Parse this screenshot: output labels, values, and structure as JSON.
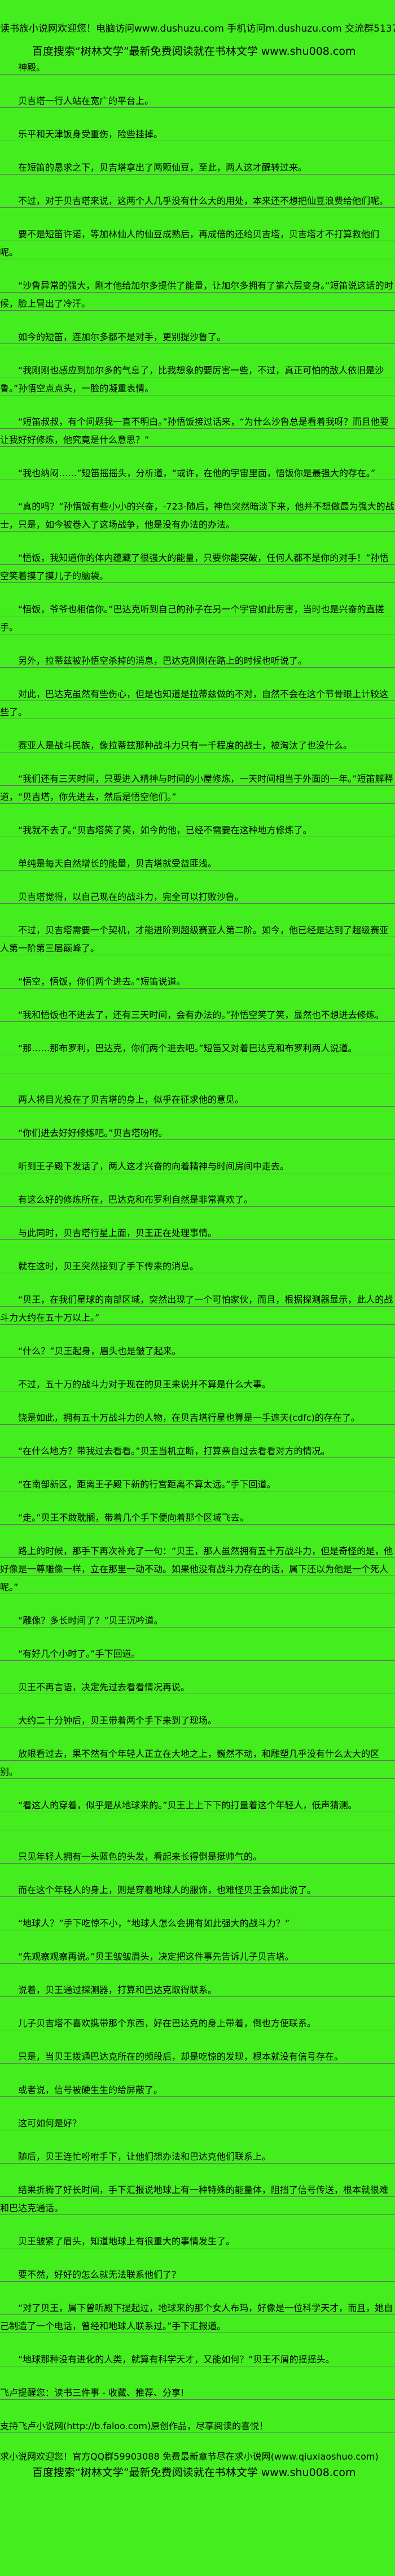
{
  "page": {
    "background_color": "#44ee1e",
    "text_color": "#000000",
    "rule_line_color": "#6c6c6c"
  },
  "header": {
    "welcome_line": "读书族小说网欢迎您！电脑访问www.dushuzu.com 手机访问m.dushuzu.com 交流群513781872",
    "promo_line": "百度搜索“树林文学”最新免费阅读就在书林文学 www.shu008.com"
  },
  "chapter": {
    "paragraphs": [
      {
        "text": "神殿。"
      },
      {
        "text": "贝吉塔一行人站在宽广的平台上。"
      },
      {
        "text": "乐平和天津饭身受重伤，险些挂掉。"
      },
      {
        "text": "在短笛的恳求之下，贝吉塔拿出了两颗仙豆，至此，两人这才醒转过来。"
      },
      {
        "text": "不过，对于贝吉塔来说，这两个人几乎没有什么大的用处，本来还不想把仙豆浪费给他们呢。"
      },
      {
        "text": "要不是短笛许诺，等加林仙人的仙豆成熟后，再成倍的还给贝吉塔，贝吉塔才不打算救他们呢。"
      },
      {
        "text": "“沙鲁异常的强大，刚才他给加尔多提供了能量，让加尔多拥有了第六层变身。”短笛说这话的时候，脸上冒出了冷汗。"
      },
      {
        "text": "如今的短笛，连加尔多都不是对手，更别提沙鲁了。"
      },
      {
        "text": "“我刚刚也感应到加尔多的气息了，比我想象的要厉害一些，不过，真正可怕的敌人依旧是沙鲁。”孙悟空点点头，一脸的凝重表情。"
      },
      {
        "text": "“短笛叔叔，有个问题我一直不明白。”孙悟饭接过话来，“为什么沙鲁总是看着我呀？而且他要让我好好修炼，他究竟是什么意思？”"
      },
      {
        "text": "“我也纳闷……”短笛摇摇头，分析道，“或许，在他的宇宙里面，悟饭你是最强大的存在。”"
      },
      {
        "text": "“真的吗？”孙悟饭有些小小的兴奋，-723-随后，神色突然暗淡下来，他并不想做最为强大的战士，只是，如今被卷入了这场战争，他是没有办法的办法。"
      },
      {
        "text": "“悟饭，我知道你的体内蕴藏了很强大的能量，只要你能突破，任何人都不是你的对手！”孙悟空笑着摸了摸儿子的脑袋。"
      },
      {
        "text": "“悟饭，爷爷也相信你。”巴达克听到自己的孙子在另一个宇宙如此厉害，当时也是兴奋的直搓手。"
      },
      {
        "text": "另外，拉蒂兹被孙悟空杀掉的消息，巴达克刚刚在路上的时候也听说了。"
      },
      {
        "text": "对此，巴达克虽然有些伤心，但是也知道是拉蒂兹做的不对，自然不会在这个节骨眼上计较这些了。"
      },
      {
        "text": "赛亚人是战斗民族，像拉蒂兹那种战斗力只有一千程度的战士，被淘汰了也没什么。"
      },
      {
        "text": "“我们还有三天时间，只要进入精神与时间的小屋修炼，一天时间相当于外面的一年。”短笛解释道，“贝吉塔，你先进去，然后是悟空他们。”"
      },
      {
        "text": "“我就不去了。”贝吉塔笑了笑，如今的他，已经不需要在这种地方修炼了。"
      },
      {
        "text": "单纯是每天自然增长的能量，贝吉塔就受益匪浅。"
      },
      {
        "text": "贝吉塔觉得，以自己现在的战斗力，完全可以打败沙鲁。"
      },
      {
        "text": "不过，贝吉塔需要一个契机，才能进阶到超级赛亚人第二阶。如今，他已经是达到了超级赛亚人第一阶第三层巅峰了。"
      },
      {
        "text": "“悟空，悟饭，你们两个进去。”短笛说道。"
      },
      {
        "text": "“我和悟饭也不进去了，还有三天时间，会有办法的。”孙悟空笑了笑，显然也不想进去修炼。"
      },
      {
        "text": "“那……那布罗利，巴达克，你们两个进去吧。”短笛又对着巴达克和布罗利两人说道。",
        "blank_tail": true
      },
      {
        "text": "两人将目光投在了贝吉塔的身上，似乎在征求他的意见。"
      },
      {
        "text": "“你们进去好好修炼吧。”贝吉塔吩咐。"
      },
      {
        "text": "听到王子殿下发话了，两人这才兴奋的向着精神与时间房间中走去。"
      },
      {
        "text": "有这么好的修炼所在，巴达克和布罗利自然是非常喜欢了。"
      },
      {
        "text": "与此同时，贝吉塔行星上面，贝王正在处理事情。"
      },
      {
        "text": "就在这时，贝王突然接到了手下传来的消息。"
      },
      {
        "text": "“贝王，在我们星球的南部区域，突然出现了一个可怕家伙，而且，根据探测器显示，此人的战斗力大约在五十万以上。”"
      },
      {
        "text": "“什么？”贝王起身，眉头也是皱了起来。"
      },
      {
        "text": "不过，五十万的战斗力对于现在的贝王来说并不算是什么大事。"
      },
      {
        "text": "饶是如此，拥有五十万战斗力的人物，在贝吉塔行星也算是一手遮天(cdfc)的存在了。"
      },
      {
        "text": "“在什么地方？带我过去看看。”贝王当机立断，打算亲自过去看看对方的情况。"
      },
      {
        "text": "“在南部新区，距离王子殿下新的行宫距离不算太远。”手下回道。"
      },
      {
        "text": "“走。”贝王不敢耽搁，带着几个手下便向着那个区域飞去。"
      },
      {
        "text": "路上的时候，那手下再次补充了一句：“贝王，那人虽然拥有五十万战斗力，但是奇怪的是，他好像是一尊雕像一样，立在那里一动不动。如果他没有战斗力存在的话，属下还以为他是一个死人呢。”"
      },
      {
        "text": "“雕像？多长时间了？”贝王沉吟道。"
      },
      {
        "text": "“有好几个小时了。”手下回道。"
      },
      {
        "text": "贝王不再言语，决定先过去看看情况再说。"
      },
      {
        "text": "大约二十分钟后，贝王带着两个手下来到了现场。"
      },
      {
        "text": "放眼看过去，果不然有个年轻人正立在大地之上，巍然不动，和雕塑几乎没有什么太大的区别。"
      },
      {
        "text": "“看这人的穿着，似乎是从地球来的。”贝王上上下下的打量着这个年轻人，低声猜测。",
        "blank_tail": true
      },
      {
        "text": "只见年轻人拥有一头蓝色的头发，看起来长得倒是挺帅气的。"
      },
      {
        "text": "而在这个年轻人的身上，则是穿着地球人的服饰，也难怪贝王会如此说了。"
      },
      {
        "text": "“地球人？”手下吃惊不小，“地球人怎么会拥有如此强大的战斗力？”"
      },
      {
        "text": "“先观察观察再说。”贝王皱皱眉头，决定把这件事先告诉儿子贝吉塔。"
      },
      {
        "text": "说着，贝王通过探测器，打算和巴达克取得联系。"
      },
      {
        "text": "儿子贝吉塔不喜欢携带那个东西，好在巴达克的身上带着，倒也方便联系。"
      },
      {
        "text": "只是，当贝王拨通巴达克所在的频段后，却是吃惊的发现，根本就没有信号存在。"
      },
      {
        "text": "或者说，信号被硬生生的给屏蔽了。"
      },
      {
        "text": "这可如何是好？"
      },
      {
        "text": "随后，贝王连忙吩咐手下，让他们想办法和巴达克他们联系上。"
      },
      {
        "text": "结果折腾了好长时间，手下汇报说地球上有一种特殊的能量体，阻挡了信号传送，根本就很难和巴达克通话。"
      },
      {
        "text": "贝王皱紧了眉头，知道地球上有很重大的事情发生了。"
      },
      {
        "text": "要不然，好好的怎么就无法联系他们了？"
      },
      {
        "text": "“对了贝王，属下曾听殿下提起过，地球来的那个女人布玛，好像是一位科学天才，而且，她自己制造了一个电话，曾经和地球人联系过。”手下汇报道。"
      },
      {
        "text": "“地球那种没有进化的人类，就算有科学天才，又能如何？”贝王不屑的摇摇头。"
      }
    ]
  },
  "footer": {
    "faloo_reminder": "飞卢提醒您：读书三件事 - 收藏、推荐、分享!",
    "faloo_support": "支持飞卢小说网(http://b.faloo.com)原创作品，尽享阅读的喜悦！",
    "qiu_line": "求小说网欢迎您！官方QQ群59903088 免费最新章节尽在求小说网(www.qiuxiaoshuo.com)",
    "promo_line": "百度搜索“树林文学”最新免费阅读就在书林文学 www.shu008.com"
  }
}
